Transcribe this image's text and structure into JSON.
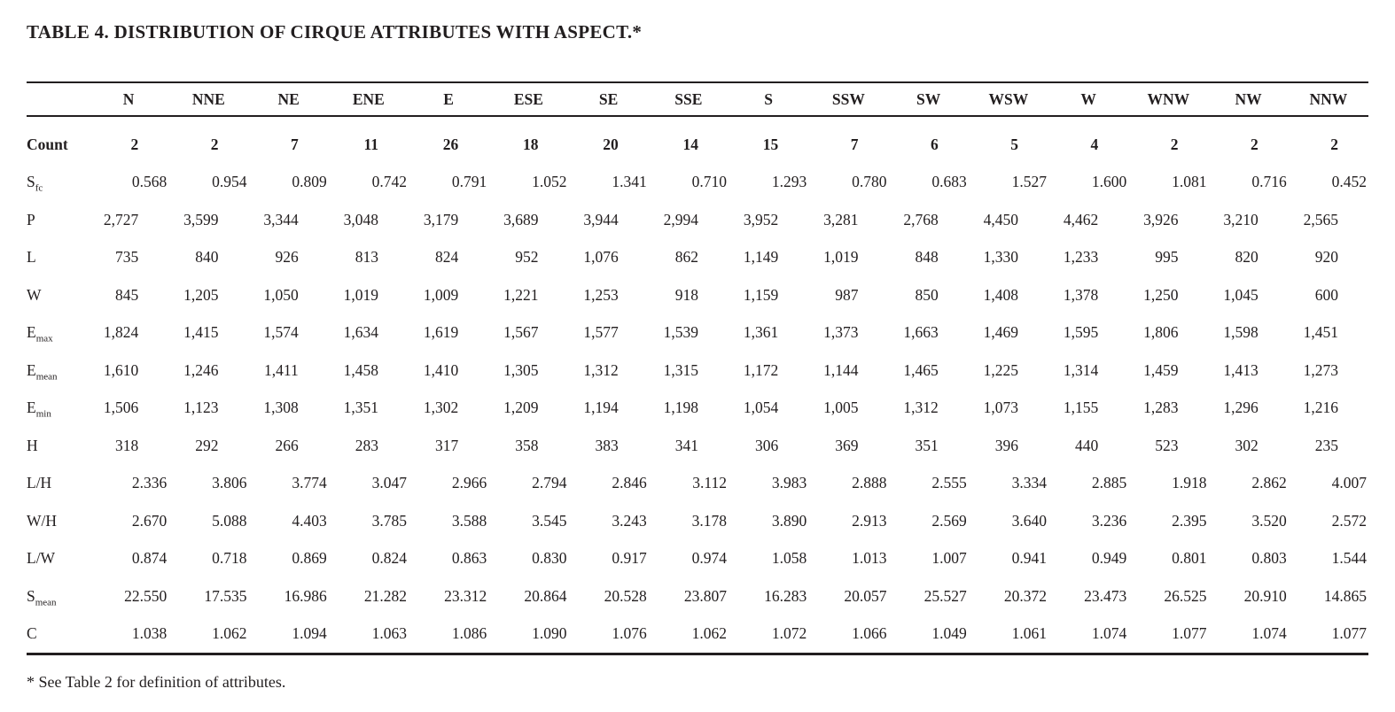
{
  "title": "TABLE 4. DISTRIBUTION OF CIRQUE ATTRIBUTES WITH ASPECT.*",
  "footnote": "* See Table 2 for definition of attributes.",
  "chart_data": {
    "type": "table",
    "columns": [
      "N",
      "NNE",
      "NE",
      "ENE",
      "E",
      "ESE",
      "SE",
      "SSE",
      "S",
      "SSW",
      "SW",
      "WSW",
      "W",
      "WNW",
      "NW",
      "NNW"
    ],
    "rows": [
      {
        "id": "count",
        "label_base": "Count",
        "label_sub": "",
        "bold": true,
        "format": "int",
        "values": [
          "2",
          "2",
          "7",
          "11",
          "26",
          "18",
          "20",
          "14",
          "15",
          "7",
          "6",
          "5",
          "4",
          "2",
          "2",
          "2"
        ]
      },
      {
        "id": "s-fc",
        "label_base": "S",
        "label_sub": "fc",
        "bold": false,
        "format": "dec",
        "values": [
          "0.568",
          "0.954",
          "0.809",
          "0.742",
          "0.791",
          "1.052",
          "1.341",
          "0.710",
          "1.293",
          "0.780",
          "0.683",
          "1.527",
          "1.600",
          "1.081",
          "0.716",
          "0.452"
        ]
      },
      {
        "id": "p",
        "label_base": "P",
        "label_sub": "",
        "bold": false,
        "format": "int",
        "values": [
          "2,727",
          "3,599",
          "3,344",
          "3,048",
          "3,179",
          "3,689",
          "3,944",
          "2,994",
          "3,952",
          "3,281",
          "2,768",
          "4,450",
          "4,462",
          "3,926",
          "3,210",
          "2,565"
        ]
      },
      {
        "id": "l",
        "label_base": "L",
        "label_sub": "",
        "bold": false,
        "format": "int",
        "values": [
          "735",
          "840",
          "926",
          "813",
          "824",
          "952",
          "1,076",
          "862",
          "1,149",
          "1,019",
          "848",
          "1,330",
          "1,233",
          "995",
          "820",
          "920"
        ]
      },
      {
        "id": "w",
        "label_base": "W",
        "label_sub": "",
        "bold": false,
        "format": "int",
        "values": [
          "845",
          "1,205",
          "1,050",
          "1,019",
          "1,009",
          "1,221",
          "1,253",
          "918",
          "1,159",
          "987",
          "850",
          "1,408",
          "1,378",
          "1,250",
          "1,045",
          "600"
        ]
      },
      {
        "id": "e-max",
        "label_base": "E",
        "label_sub": "max",
        "bold": false,
        "format": "int",
        "values": [
          "1,824",
          "1,415",
          "1,574",
          "1,634",
          "1,619",
          "1,567",
          "1,577",
          "1,539",
          "1,361",
          "1,373",
          "1,663",
          "1,469",
          "1,595",
          "1,806",
          "1,598",
          "1,451"
        ]
      },
      {
        "id": "e-mean",
        "label_base": "E",
        "label_sub": "mean",
        "bold": false,
        "format": "int",
        "values": [
          "1,610",
          "1,246",
          "1,411",
          "1,458",
          "1,410",
          "1,305",
          "1,312",
          "1,315",
          "1,172",
          "1,144",
          "1,465",
          "1,225",
          "1,314",
          "1,459",
          "1,413",
          "1,273"
        ]
      },
      {
        "id": "e-min",
        "label_base": "E",
        "label_sub": "min",
        "bold": false,
        "format": "int",
        "values": [
          "1,506",
          "1,123",
          "1,308",
          "1,351",
          "1,302",
          "1,209",
          "1,194",
          "1,198",
          "1,054",
          "1,005",
          "1,312",
          "1,073",
          "1,155",
          "1,283",
          "1,296",
          "1,216"
        ]
      },
      {
        "id": "h",
        "label_base": "H",
        "label_sub": "",
        "bold": false,
        "format": "int",
        "values": [
          "318",
          "292",
          "266",
          "283",
          "317",
          "358",
          "383",
          "341",
          "306",
          "369",
          "351",
          "396",
          "440",
          "523",
          "302",
          "235"
        ]
      },
      {
        "id": "l-h",
        "label_base": "L/H",
        "label_sub": "",
        "bold": false,
        "format": "dec",
        "values": [
          "2.336",
          "3.806",
          "3.774",
          "3.047",
          "2.966",
          "2.794",
          "2.846",
          "3.112",
          "3.983",
          "2.888",
          "2.555",
          "3.334",
          "2.885",
          "1.918",
          "2.862",
          "4.007"
        ]
      },
      {
        "id": "w-h",
        "label_base": "W/H",
        "label_sub": "",
        "bold": false,
        "format": "dec",
        "values": [
          "2.670",
          "5.088",
          "4.403",
          "3.785",
          "3.588",
          "3.545",
          "3.243",
          "3.178",
          "3.890",
          "2.913",
          "2.569",
          "3.640",
          "3.236",
          "2.395",
          "3.520",
          "2.572"
        ]
      },
      {
        "id": "l-w",
        "label_base": "L/W",
        "label_sub": "",
        "bold": false,
        "format": "dec",
        "values": [
          "0.874",
          "0.718",
          "0.869",
          "0.824",
          "0.863",
          "0.830",
          "0.917",
          "0.974",
          "1.058",
          "1.013",
          "1.007",
          "0.941",
          "0.949",
          "0.801",
          "0.803",
          "1.544"
        ]
      },
      {
        "id": "s-mean",
        "label_base": "S",
        "label_sub": "mean",
        "bold": false,
        "format": "dec",
        "values": [
          "22.550",
          "17.535",
          "16.986",
          "21.282",
          "23.312",
          "20.864",
          "20.528",
          "23.807",
          "16.283",
          "20.057",
          "25.527",
          "20.372",
          "23.473",
          "26.525",
          "20.910",
          "14.865"
        ]
      },
      {
        "id": "c",
        "label_base": "C",
        "label_sub": "",
        "bold": false,
        "format": "dec",
        "values": [
          "1.038",
          "1.062",
          "1.094",
          "1.063",
          "1.086",
          "1.090",
          "1.076",
          "1.062",
          "1.072",
          "1.066",
          "1.049",
          "1.061",
          "1.074",
          "1.077",
          "1.074",
          "1.077"
        ]
      }
    ]
  }
}
